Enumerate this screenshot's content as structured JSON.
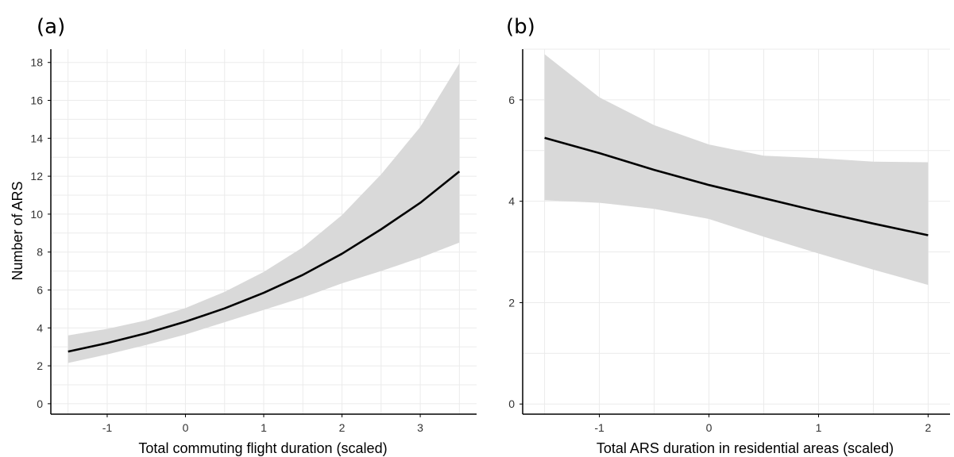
{
  "chart_data": [
    {
      "type": "line",
      "panel_label": "(a)",
      "xlabel": "Total commuting flight duration (scaled)",
      "ylabel": "Number of ARS",
      "xlim": [
        -1.72,
        3.72
      ],
      "ylim": [
        -0.55,
        18.7
      ],
      "xticks": [
        -1,
        0,
        1,
        2,
        3
      ],
      "yticks": [
        0,
        2,
        4,
        6,
        8,
        10,
        12,
        14,
        16,
        18
      ],
      "grid": true,
      "x": [
        -1.5,
        -1,
        -0.5,
        0,
        0.5,
        1,
        1.5,
        2,
        2.5,
        3,
        3.5
      ],
      "fit": [
        2.75,
        3.2,
        3.72,
        4.33,
        5.03,
        5.85,
        6.8,
        7.91,
        9.2,
        10.6,
        12.25
      ],
      "lower": [
        2.15,
        2.6,
        3.1,
        3.65,
        4.3,
        4.95,
        5.6,
        6.35,
        7.0,
        7.7,
        8.5
      ],
      "upper": [
        3.6,
        3.95,
        4.4,
        5.05,
        5.9,
        6.95,
        8.25,
        9.95,
        12.1,
        14.6,
        17.95
      ],
      "colors": {
        "line": "#000000",
        "band": "#d9d9d9",
        "grid": "#ebebeb",
        "axis": "#000000"
      }
    },
    {
      "type": "line",
      "panel_label": "(b)",
      "xlabel": "Total ARS duration in residential areas (scaled)",
      "ylabel": "",
      "xlim": [
        -1.7,
        2.2
      ],
      "ylim": [
        -0.2,
        7.0
      ],
      "xticks": [
        -1,
        0,
        1,
        2
      ],
      "yticks": [
        0,
        2,
        4,
        6
      ],
      "grid": true,
      "x": [
        -1.5,
        -1,
        -0.5,
        0,
        0.5,
        1,
        1.5,
        2
      ],
      "fit": [
        5.25,
        4.95,
        4.62,
        4.32,
        4.06,
        3.8,
        3.56,
        3.33
      ],
      "lower": [
        4.02,
        3.97,
        3.85,
        3.65,
        3.3,
        2.97,
        2.65,
        2.35
      ],
      "upper": [
        6.9,
        6.05,
        5.5,
        5.12,
        4.9,
        4.85,
        4.78,
        4.77
      ],
      "colors": {
        "line": "#000000",
        "band": "#d9d9d9",
        "grid": "#ebebeb",
        "axis": "#000000"
      }
    }
  ]
}
